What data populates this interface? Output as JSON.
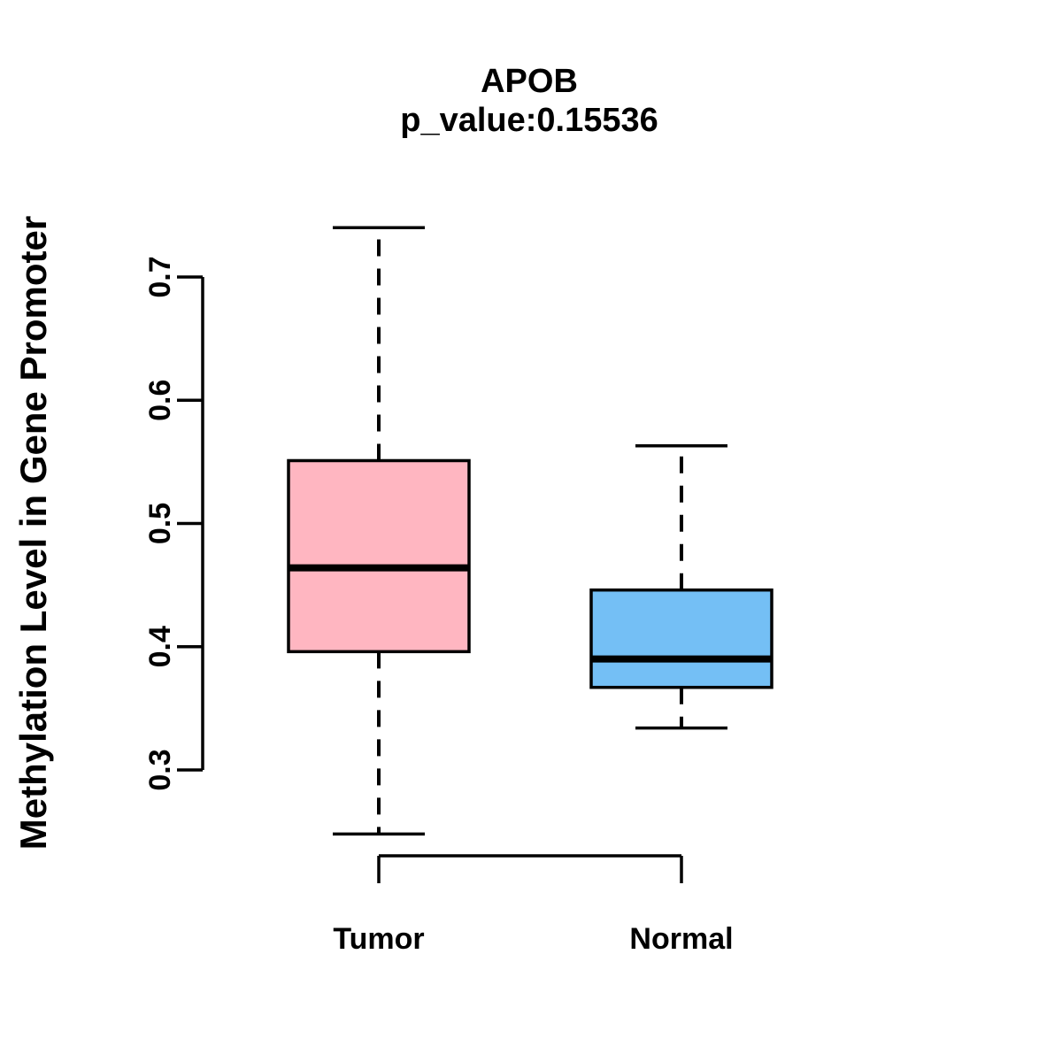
{
  "title": {
    "gene": "APOB",
    "pvalue_line": "p_value:0.15536"
  },
  "chart_data": {
    "type": "boxplot",
    "title": "APOB",
    "subtitle": "p_value:0.15536",
    "ylabel": "Methylation Level in Gene Promoter",
    "xlabel": "",
    "categories": [
      "Tumor",
      "Normal"
    ],
    "y_ticks": [
      "0.3",
      "0.4",
      "0.5",
      "0.6",
      "0.7"
    ],
    "ylim": [
      0.248,
      0.74
    ],
    "grid": "off",
    "legend": "none",
    "series": [
      {
        "name": "Tumor",
        "fill_color": "#FFB6C1",
        "lower_whisker": 0.248,
        "q1": 0.396,
        "median": 0.464,
        "q3": 0.551,
        "upper_whisker": 0.74
      },
      {
        "name": "Normal",
        "fill_color": "#74BFF5",
        "lower_whisker": 0.334,
        "q1": 0.367,
        "median": 0.39,
        "q3": 0.446,
        "upper_whisker": 0.563
      }
    ],
    "stroke_color": "#000000",
    "background_color": "#FFFFFF"
  }
}
